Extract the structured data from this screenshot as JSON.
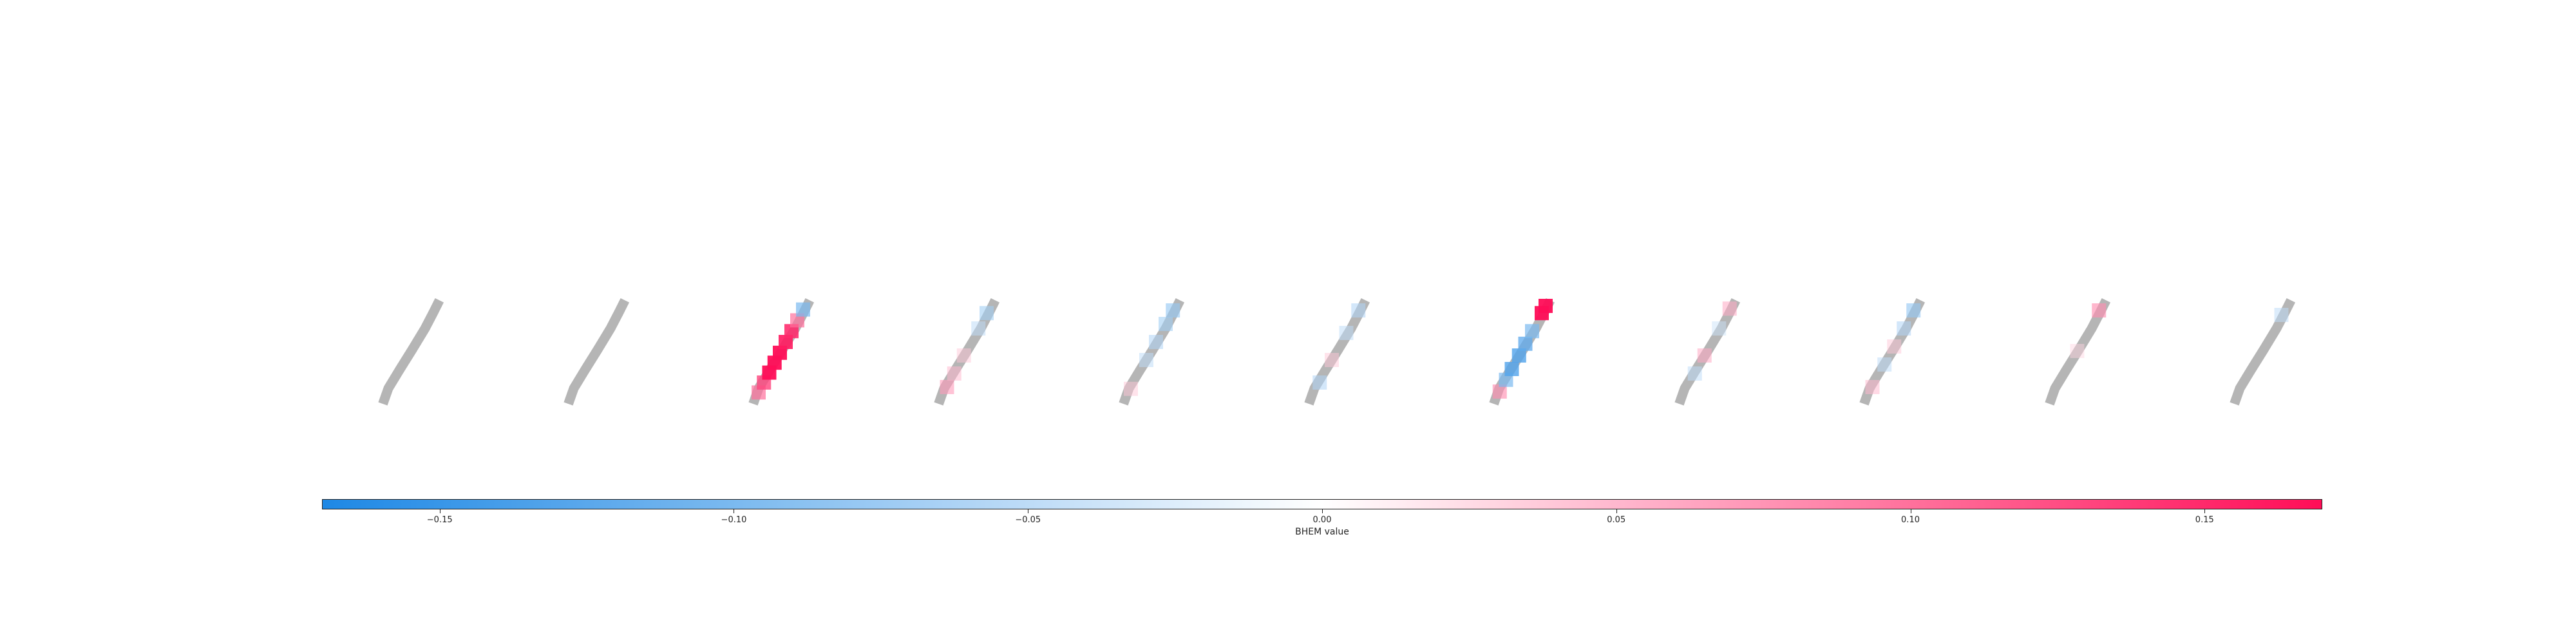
{
  "chart_data": {
    "type": "heatmap",
    "panel_count": 11,
    "colorbar": {
      "label": "BHEM value",
      "range": [
        -0.17,
        0.17
      ],
      "ticks": [
        -0.15,
        -0.1,
        -0.05,
        0.0,
        0.05,
        0.1,
        0.15
      ],
      "tick_labels": [
        "−0.15",
        "−0.10",
        "−0.05",
        "0.00",
        "0.05",
        "0.10",
        "0.15"
      ],
      "colormap": {
        "negative": "#1e88e5",
        "zero": "#ffffff",
        "positive": "#ff0d57"
      }
    },
    "background_digit_color": "#a8a8a8",
    "panels": [
      {
        "attributions": []
      },
      {
        "attributions": []
      },
      {
        "attributions": [
          {
            "pos": 0.04,
            "v": 0.1
          },
          {
            "pos": 0.15,
            "v": 0.13
          },
          {
            "pos": 0.26,
            "v": 0.17
          },
          {
            "pos": 0.37,
            "v": 0.17
          },
          {
            "pos": 0.48,
            "v": 0.17
          },
          {
            "pos": 0.6,
            "v": 0.16
          },
          {
            "pos": 0.72,
            "v": 0.15
          },
          {
            "pos": 0.84,
            "v": 0.1
          },
          {
            "pos": 0.96,
            "v": -0.1
          }
        ]
      },
      {
        "attributions": [
          {
            "pos": 0.1,
            "v": 0.07
          },
          {
            "pos": 0.25,
            "v": 0.05
          },
          {
            "pos": 0.45,
            "v": 0.04
          },
          {
            "pos": 0.75,
            "v": -0.05
          },
          {
            "pos": 0.92,
            "v": -0.07
          }
        ]
      },
      {
        "attributions": [
          {
            "pos": 0.08,
            "v": 0.04
          },
          {
            "pos": 0.4,
            "v": -0.05
          },
          {
            "pos": 0.6,
            "v": -0.06
          },
          {
            "pos": 0.8,
            "v": -0.07
          },
          {
            "pos": 0.95,
            "v": -0.08
          }
        ]
      },
      {
        "attributions": [
          {
            "pos": 0.15,
            "v": -0.06
          },
          {
            "pos": 0.4,
            "v": 0.04
          },
          {
            "pos": 0.7,
            "v": -0.05
          },
          {
            "pos": 0.95,
            "v": -0.06
          }
        ]
      },
      {
        "attributions": [
          {
            "pos": 0.05,
            "v": 0.08
          },
          {
            "pos": 0.18,
            "v": -0.1
          },
          {
            "pos": 0.3,
            "v": -0.13
          },
          {
            "pos": 0.45,
            "v": -0.13
          },
          {
            "pos": 0.58,
            "v": -0.12
          },
          {
            "pos": 0.72,
            "v": -0.1
          },
          {
            "pos": 0.92,
            "v": 0.17
          },
          {
            "pos": 1.0,
            "v": 0.17
          }
        ]
      },
      {
        "attributions": [
          {
            "pos": 0.25,
            "v": -0.05
          },
          {
            "pos": 0.45,
            "v": 0.06
          },
          {
            "pos": 0.75,
            "v": -0.04
          },
          {
            "pos": 0.97,
            "v": 0.06
          }
        ]
      },
      {
        "attributions": [
          {
            "pos": 0.1,
            "v": 0.05
          },
          {
            "pos": 0.35,
            "v": -0.05
          },
          {
            "pos": 0.55,
            "v": 0.04
          },
          {
            "pos": 0.75,
            "v": -0.06
          },
          {
            "pos": 0.95,
            "v": -0.08
          }
        ]
      },
      {
        "attributions": [
          {
            "pos": 0.5,
            "v": 0.03
          },
          {
            "pos": 0.95,
            "v": 0.08
          }
        ]
      },
      {
        "attributions": [
          {
            "pos": 0.9,
            "v": -0.05
          }
        ]
      }
    ]
  }
}
